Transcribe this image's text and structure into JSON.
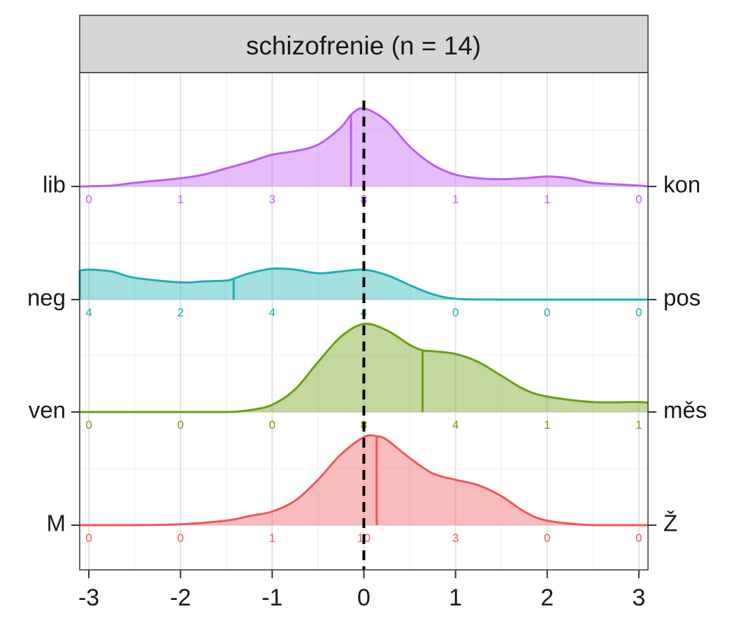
{
  "chart_data": {
    "type": "area",
    "title": "schizofrenie (n = 14)",
    "xlim": [
      -3.1,
      3.1
    ],
    "x_ticks": [
      -3,
      -2,
      -1,
      0,
      1,
      2,
      3
    ],
    "x_tick_labels": [
      "-3",
      "-2",
      "-1",
      "0",
      "1",
      "2",
      "3"
    ],
    "reference_line_x": 0,
    "count_positions": [
      -3,
      -2,
      -1,
      0,
      1,
      2,
      3
    ],
    "grid": true,
    "legend": "none",
    "series": [
      {
        "left_label": "M",
        "right_label": "Ž",
        "color": "#F0575A",
        "mean": 0.14,
        "counts": [
          "0",
          "0",
          "1",
          "10",
          "3",
          "0",
          "0"
        ],
        "density": [
          [
            -3.1,
            0
          ],
          [
            -2.5,
            0
          ],
          [
            -2.0,
            0.01
          ],
          [
            -1.5,
            0.05
          ],
          [
            -1.25,
            0.1
          ],
          [
            -1.0,
            0.15
          ],
          [
            -0.75,
            0.27
          ],
          [
            -0.5,
            0.5
          ],
          [
            -0.25,
            0.78
          ],
          [
            0,
            0.97
          ],
          [
            0.14,
            0.98
          ],
          [
            0.25,
            0.94
          ],
          [
            0.5,
            0.74
          ],
          [
            0.75,
            0.57
          ],
          [
            1.0,
            0.5
          ],
          [
            1.25,
            0.44
          ],
          [
            1.5,
            0.32
          ],
          [
            1.75,
            0.15
          ],
          [
            2.0,
            0.05
          ],
          [
            2.5,
            0
          ],
          [
            3.1,
            0
          ]
        ]
      },
      {
        "left_label": "ven",
        "right_label": "měs",
        "color": "#6A9E0F",
        "mean": 0.64,
        "counts": [
          "0",
          "0",
          "0",
          "8",
          "4",
          "1",
          "1"
        ],
        "density": [
          [
            -3.1,
            0
          ],
          [
            -2.0,
            0
          ],
          [
            -1.5,
            0
          ],
          [
            -1.25,
            0.02
          ],
          [
            -1.0,
            0.08
          ],
          [
            -0.75,
            0.25
          ],
          [
            -0.5,
            0.55
          ],
          [
            -0.25,
            0.83
          ],
          [
            0,
            0.97
          ],
          [
            0.25,
            0.9
          ],
          [
            0.5,
            0.74
          ],
          [
            0.64,
            0.68
          ],
          [
            0.75,
            0.67
          ],
          [
            1.0,
            0.64
          ],
          [
            1.25,
            0.55
          ],
          [
            1.5,
            0.4
          ],
          [
            1.75,
            0.25
          ],
          [
            2.0,
            0.17
          ],
          [
            2.5,
            0.11
          ],
          [
            3.0,
            0.11
          ],
          [
            3.1,
            0.1
          ]
        ]
      },
      {
        "left_label": "neg",
        "right_label": "pos",
        "color": "#1BAFB2",
        "mean": -1.42,
        "counts": [
          "4",
          "2",
          "4",
          "4",
          "0",
          "0",
          "0"
        ],
        "density": [
          [
            -3.1,
            0.32
          ],
          [
            -3.0,
            0.33
          ],
          [
            -2.75,
            0.31
          ],
          [
            -2.5,
            0.24
          ],
          [
            -2.0,
            0.19
          ],
          [
            -1.75,
            0.2
          ],
          [
            -1.5,
            0.21
          ],
          [
            -1.42,
            0.23
          ],
          [
            -1.25,
            0.29
          ],
          [
            -1.0,
            0.34
          ],
          [
            -0.75,
            0.33
          ],
          [
            -0.5,
            0.29
          ],
          [
            -0.25,
            0.31
          ],
          [
            0,
            0.33
          ],
          [
            0.25,
            0.27
          ],
          [
            0.5,
            0.16
          ],
          [
            0.75,
            0.06
          ],
          [
            1.0,
            0.01
          ],
          [
            1.5,
            0
          ],
          [
            3.1,
            0
          ]
        ]
      },
      {
        "left_label": "lib",
        "right_label": "kon",
        "color": "#BE5BF5",
        "mean": -0.14,
        "counts": [
          "0",
          "1",
          "3",
          "8",
          "1",
          "1",
          "0"
        ],
        "density": [
          [
            -3.1,
            0
          ],
          [
            -2.75,
            0.01
          ],
          [
            -2.5,
            0.04
          ],
          [
            -2.0,
            0.09
          ],
          [
            -1.75,
            0.13
          ],
          [
            -1.5,
            0.2
          ],
          [
            -1.25,
            0.27
          ],
          [
            -1.0,
            0.35
          ],
          [
            -0.75,
            0.39
          ],
          [
            -0.5,
            0.46
          ],
          [
            -0.25,
            0.65
          ],
          [
            -0.14,
            0.79
          ],
          [
            0,
            0.86
          ],
          [
            0.25,
            0.72
          ],
          [
            0.5,
            0.44
          ],
          [
            0.75,
            0.24
          ],
          [
            1.0,
            0.13
          ],
          [
            1.25,
            0.09
          ],
          [
            1.5,
            0.08
          ],
          [
            1.75,
            0.09
          ],
          [
            2.0,
            0.11
          ],
          [
            2.25,
            0.09
          ],
          [
            2.5,
            0.04
          ],
          [
            3.0,
            0.01
          ],
          [
            3.1,
            0
          ]
        ]
      }
    ]
  }
}
